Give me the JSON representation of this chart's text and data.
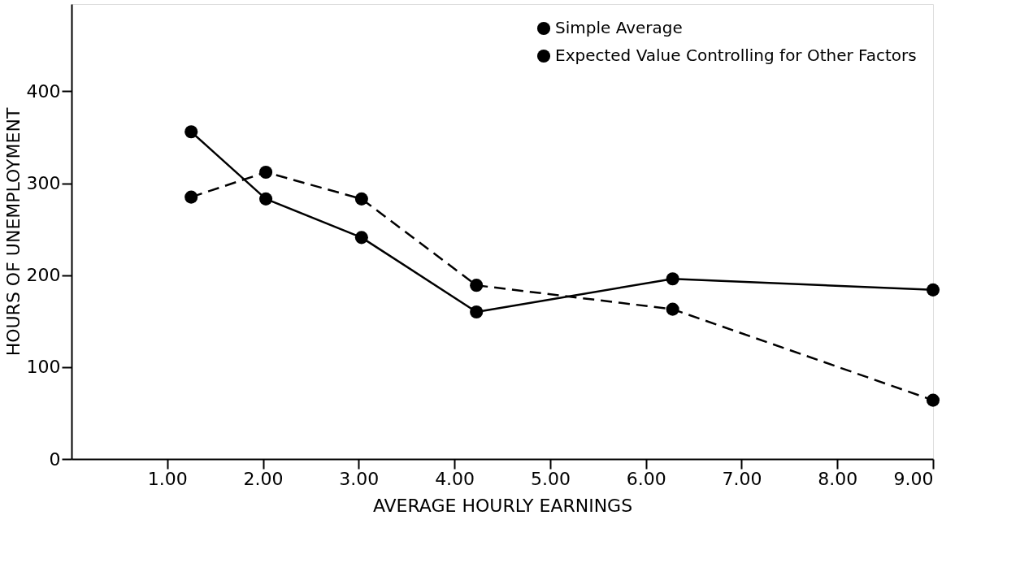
{
  "chart_data": {
    "type": "line",
    "xlabel": "AVERAGE HOURLY EARNINGS",
    "ylabel": "HOURS OF UNEMPLOYMENT",
    "xlim": [
      0,
      9
    ],
    "ylim": [
      0,
      495
    ],
    "xticks": [
      {
        "value": 1,
        "label": "1.00"
      },
      {
        "value": 2,
        "label": "2.00"
      },
      {
        "value": 3,
        "label": "3.00"
      },
      {
        "value": 4,
        "label": "4.00"
      },
      {
        "value": 5,
        "label": "5.00"
      },
      {
        "value": 6,
        "label": "6.00"
      },
      {
        "value": 7,
        "label": "7.00"
      },
      {
        "value": 8,
        "label": "8.00"
      },
      {
        "value": 9,
        "label": "9.00"
      }
    ],
    "yticks": [
      0,
      100,
      200,
      300,
      400
    ],
    "x": [
      1.25,
      2.03,
      3.03,
      4.23,
      6.28,
      9.0
    ],
    "series": [
      {
        "name": "Simple Average",
        "color": "#000000",
        "line_style": "dashed",
        "marker": "circle",
        "values": [
          285,
          312,
          283,
          189,
          163,
          64
        ]
      },
      {
        "name": "Expected Value Controlling for Other Factors",
        "color": "#000000",
        "line_style": "solid",
        "marker": "circle",
        "values": [
          356,
          283,
          241,
          160,
          196,
          184
        ]
      }
    ],
    "grid": false,
    "legend": "top right"
  }
}
